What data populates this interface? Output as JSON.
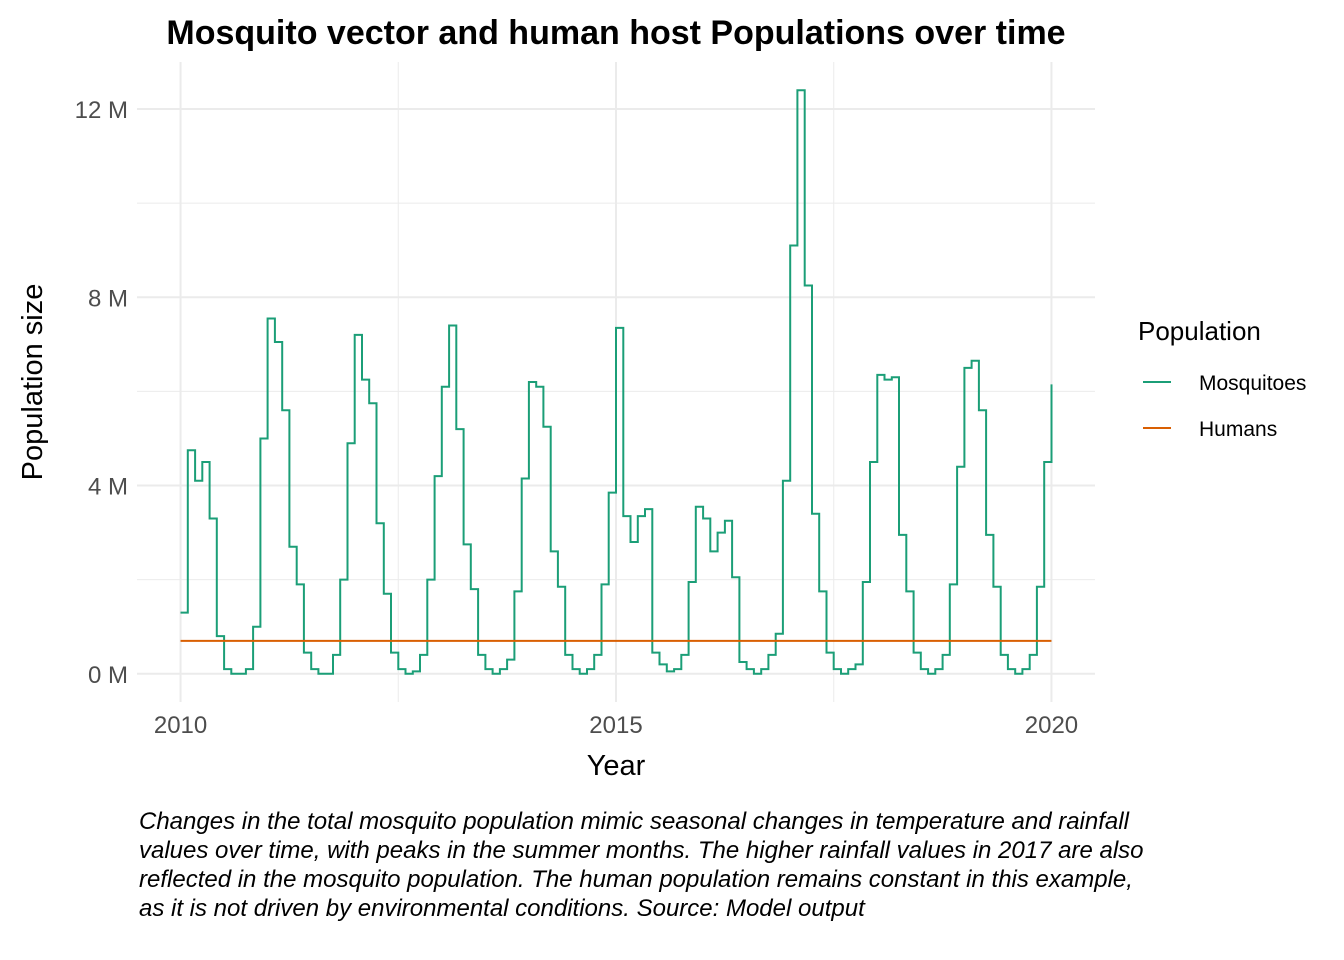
{
  "chart_data": {
    "type": "line",
    "title": "Mosquito vector and human host Populations over time",
    "xlabel": "Year",
    "ylabel": "Population size",
    "xlim": [
      2009.5,
      2020.5
    ],
    "ylim": [
      -0.6,
      13.0
    ],
    "x_ticks": [
      {
        "value": 2010,
        "label": "2010"
      },
      {
        "value": 2015,
        "label": "2015"
      },
      {
        "value": 2020,
        "label": "2020"
      }
    ],
    "y_ticks": [
      {
        "value": 0,
        "label": "0 M"
      },
      {
        "value": 4,
        "label": "4 M"
      },
      {
        "value": 8,
        "label": "8 M"
      },
      {
        "value": 12,
        "label": "12 M"
      }
    ],
    "y_unit": "M",
    "grid": true,
    "legend": {
      "title": "Population",
      "position": "right"
    },
    "step": "hv",
    "series": [
      {
        "name": "Mosquitoes",
        "color": "#1b9e77",
        "x_start": 2010.0,
        "x_step": 0.0833333,
        "values": [
          1.3,
          4.75,
          4.1,
          4.5,
          3.3,
          0.8,
          0.1,
          0.0,
          0.0,
          0.1,
          1.0,
          5.0,
          7.55,
          7.05,
          5.6,
          2.7,
          1.9,
          0.45,
          0.1,
          0.0,
          0.0,
          0.4,
          2.0,
          4.9,
          7.2,
          6.25,
          5.75,
          3.2,
          1.7,
          0.45,
          0.1,
          0.0,
          0.05,
          0.4,
          2.0,
          4.2,
          6.1,
          7.4,
          5.2,
          2.75,
          1.8,
          0.4,
          0.1,
          0.0,
          0.1,
          0.3,
          1.75,
          4.15,
          6.2,
          6.1,
          5.25,
          2.6,
          1.85,
          0.4,
          0.1,
          0.0,
          0.1,
          0.4,
          1.9,
          3.85,
          7.35,
          3.35,
          2.8,
          3.35,
          3.5,
          0.45,
          0.2,
          0.05,
          0.1,
          0.4,
          1.95,
          3.55,
          3.3,
          2.6,
          3.0,
          3.25,
          2.05,
          0.25,
          0.1,
          0.0,
          0.1,
          0.4,
          0.85,
          4.1,
          9.1,
          12.4,
          8.25,
          3.4,
          1.75,
          0.45,
          0.1,
          0.0,
          0.1,
          0.2,
          1.95,
          4.5,
          6.35,
          6.25,
          6.3,
          2.95,
          1.75,
          0.45,
          0.1,
          0.0,
          0.1,
          0.4,
          1.9,
          4.4,
          6.5,
          6.65,
          5.6,
          2.95,
          1.85,
          0.4,
          0.1,
          0.0,
          0.1,
          0.4,
          1.85,
          4.5,
          6.15
        ]
      },
      {
        "name": "Humans",
        "color": "#d95f02",
        "x": [
          2010.0,
          2020.0
        ],
        "values": [
          0.7,
          0.7
        ]
      }
    ],
    "caption": "Changes in the total mosquito population mimic seasonal changes in temperature and rainfall values over time, with peaks in the summer months. The higher rainfall values in 2017 are also reflected in the mosquito population. The human population remains constant in this example, as it is not driven by environmental conditions. Source: Model output"
  }
}
